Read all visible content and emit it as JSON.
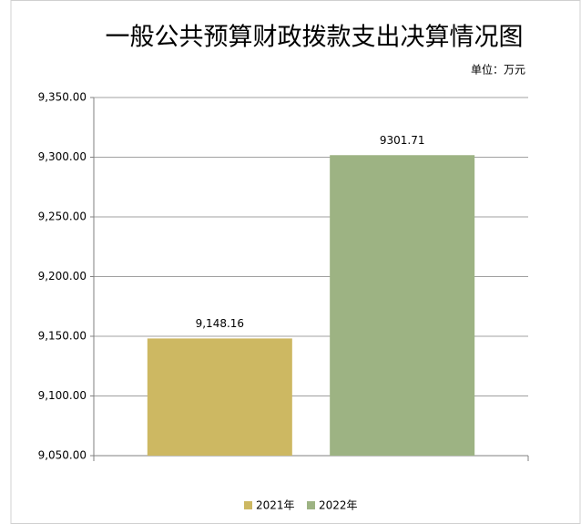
{
  "chart_data": {
    "type": "bar",
    "title": "一般公共预算财政拨款支出决算情况图",
    "subtitle": "单位：万元",
    "series": [
      {
        "name": "2021年",
        "color": "#cdb862",
        "values": [
          9148.16
        ],
        "value_labels": [
          "9,148.16"
        ]
      },
      {
        "name": "2022年",
        "color": "#9db383",
        "values": [
          9301.71
        ]
      }
    ],
    "ylim": [
      9050,
      9350
    ],
    "yticks": [
      {
        "value": 9050,
        "label": "9,050.00"
      },
      {
        "value": 9100,
        "label": "9,100.00"
      },
      {
        "value": 9150,
        "label": "9,150.00"
      },
      {
        "value": 9200,
        "label": "9,200.00"
      },
      {
        "value": 9250,
        "label": "9,250.00"
      },
      {
        "value": 9300,
        "label": "9,300.00"
      },
      {
        "value": 9350,
        "label": "9,350.00"
      }
    ],
    "grid": true,
    "legend": "bottom"
  }
}
